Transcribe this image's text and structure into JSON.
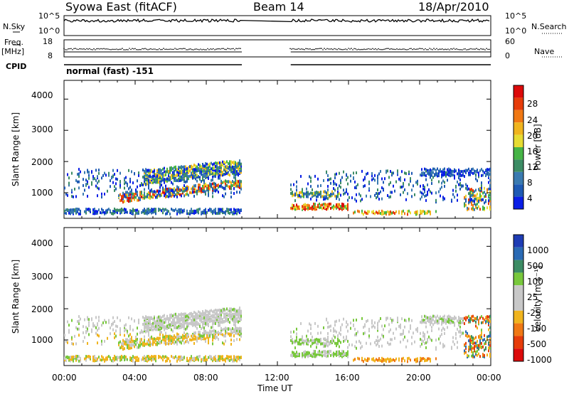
{
  "header": {
    "station": "Syowa East (fitACF)",
    "beam": "Beam 14",
    "date": "18/Apr/2010"
  },
  "left_labels": {
    "nsky": "N.Sky",
    "freq": "Freq.",
    "freq_unit": "[MHz]",
    "cpid": "CPID"
  },
  "right_labels": {
    "nsearch": "N.Search",
    "nave": "Nave"
  },
  "cpid_text": "normal (fast) -151",
  "chart_data": [
    {
      "type": "line",
      "name": "noise",
      "ylabel": "N.Sky",
      "y_ticks_left": [
        "10^5",
        "10^0"
      ],
      "y_ticks_right": [
        "10^5",
        "10^0"
      ],
      "data_gaps_ut": [
        [
          10.0,
          12.75
        ]
      ]
    },
    {
      "type": "line",
      "name": "frequency",
      "y_ticks_left": [
        "18",
        "8"
      ],
      "y_ticks_right": [
        "60",
        "0"
      ],
      "data_gaps_ut": [
        [
          10.0,
          12.75
        ]
      ]
    },
    {
      "type": "heatmap",
      "name": "power",
      "ylabel": "Slant Range [km]",
      "colorbar_label": "Power [dB]",
      "y_ticks": [
        "1000",
        "2000",
        "3000",
        "4000"
      ],
      "ylim": [
        180,
        4600
      ],
      "colorbar_ticks": [
        "4",
        "8",
        "12",
        "16",
        "20",
        "24",
        "28"
      ],
      "colorbar_range": [
        0,
        32
      ],
      "echo_regions": [
        {
          "t": [
            0.0,
            10.0
          ],
          "r": [
            200,
            2200
          ]
        },
        {
          "t": [
            12.75,
            24.0
          ],
          "r": [
            250,
            2200
          ]
        }
      ]
    },
    {
      "type": "heatmap",
      "name": "velocity",
      "ylabel": "Slant Range [km]",
      "colorbar_label": "Velocity [m s⁻¹]",
      "y_ticks": [
        "1000",
        "2000",
        "3000",
        "4000"
      ],
      "ylim": [
        180,
        4600
      ],
      "colorbar_ticks": [
        "1000",
        "500",
        "100",
        "25",
        "-25",
        "-100",
        "-500",
        "-1000"
      ],
      "echo_regions": [
        {
          "t": [
            0.0,
            10.0
          ],
          "r": [
            200,
            2200
          ]
        },
        {
          "t": [
            12.75,
            24.0
          ],
          "r": [
            250,
            2200
          ]
        }
      ]
    }
  ],
  "x_axis": {
    "ticks": [
      "00:00",
      "04:00",
      "08:00",
      "12:00",
      "16:00",
      "20:00",
      "00:00"
    ],
    "label": "Time UT",
    "range_hours": [
      0,
      24
    ]
  },
  "colors": {
    "power_scale": [
      "#0a1ee6",
      "#1e5ab4",
      "#3a7ab0",
      "#3c8c64",
      "#46b446",
      "#e6dc32",
      "#f0b41e",
      "#f07814",
      "#e63c0a",
      "#dc0a0a"
    ],
    "velocity_scale": [
      "#1e3cb4",
      "#2a6ab4",
      "#3c8c64",
      "#78c83c",
      "#c8c8c8",
      "#c8c8c8",
      "#f0b41e",
      "#f07814",
      "#e63c0a",
      "#dc0a0a"
    ]
  }
}
